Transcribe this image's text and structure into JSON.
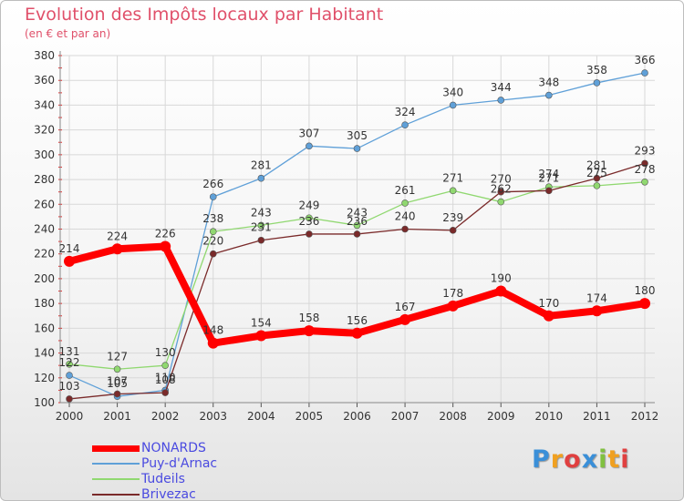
{
  "chart_data": {
    "type": "line",
    "title": "Evolution des Impôts locaux par Habitant",
    "subtitle": "(en € et par an)",
    "x": [
      "2000",
      "2001",
      "2002",
      "2003",
      "2004",
      "2005",
      "2006",
      "2007",
      "2008",
      "2009",
      "2010",
      "2011",
      "2012"
    ],
    "ylim": [
      100,
      380
    ],
    "yticks": [
      100,
      120,
      140,
      160,
      180,
      200,
      220,
      240,
      260,
      280,
      300,
      320,
      340,
      360,
      380
    ],
    "grid": true,
    "legend_position": "bottom-left",
    "series": [
      {
        "name": "NONARDS",
        "color": "#ff0000",
        "values": [
          214,
          224,
          226,
          148,
          154,
          158,
          156,
          167,
          178,
          190,
          170,
          174,
          180
        ]
      },
      {
        "name": "Puy-d'Arnac",
        "color": "#5fa0d8",
        "values": [
          122,
          105,
          110,
          266,
          281,
          307,
          305,
          324,
          340,
          344,
          348,
          358,
          366
        ]
      },
      {
        "name": "Tudeils",
        "color": "#90d870",
        "values": [
          131,
          127,
          130,
          238,
          243,
          249,
          243,
          261,
          271,
          262,
          274,
          275,
          278
        ]
      },
      {
        "name": "Brivezac",
        "color": "#7a2a2a",
        "values": [
          103,
          107,
          108,
          220,
          231,
          236,
          236,
          240,
          239,
          270,
          271,
          281,
          293
        ]
      }
    ]
  },
  "logo": [
    "P",
    "r",
    "o",
    "x",
    "i",
    "t",
    "i"
  ]
}
